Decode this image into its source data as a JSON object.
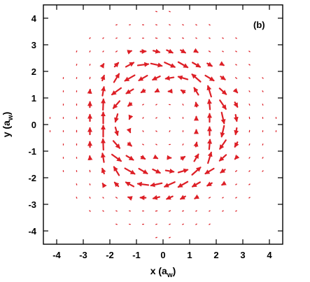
{
  "chart_data": {
    "type": "quiver",
    "panel_label": "(b)",
    "xlabel": {
      "main": "x (a",
      "sub": "w",
      "end": ")"
    },
    "ylabel": {
      "main": "y (a",
      "sub": "w",
      "end": ")"
    },
    "xlim": [
      -4.5,
      4.5
    ],
    "ylim": [
      -4.5,
      4.5
    ],
    "x_ticks": [
      -4,
      -3,
      -2,
      -1,
      0,
      1,
      2,
      3,
      4
    ],
    "y_ticks": [
      -4,
      -3,
      -2,
      -1,
      0,
      1,
      2,
      3,
      4
    ],
    "x_tick_labels": [
      "-4",
      "-3",
      "-2",
      "-1",
      "0",
      "1",
      "2",
      "3",
      "4"
    ],
    "y_tick_labels": [
      "-4",
      "-3",
      "-2",
      "-1",
      "0",
      "1",
      "2",
      "3",
      "4"
    ],
    "grid_spacing": 0.5,
    "field_region_radius": 4.3,
    "field_description": "vortex ring of current density centered near radius 2.2",
    "ring_radius": 2.2,
    "ring_width": 0.75,
    "arrow_color": "#dd1f26"
  }
}
